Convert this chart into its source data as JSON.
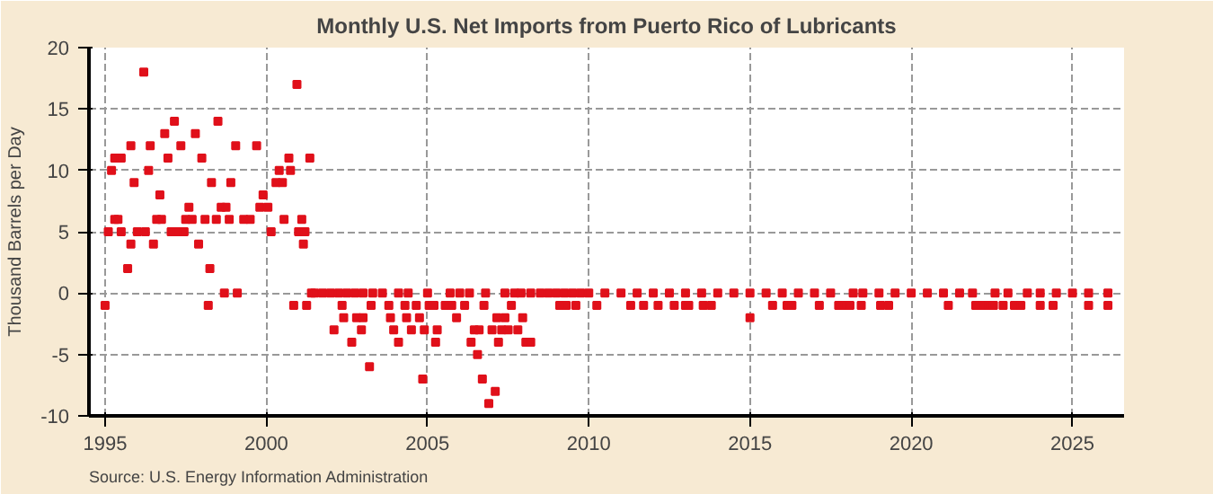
{
  "chart_data": {
    "type": "scatter",
    "title": "Monthly U.S. Net Imports from Puerto Rico of Lubricants",
    "ylabel": "Thousand Barrels per Day",
    "annotations": [
      "Source: U.S. Energy Information Administration"
    ],
    "x": [
      1995.0,
      1995.1,
      1995.2,
      1995.3,
      1995.4,
      1995.3,
      1995.5,
      1995.5,
      1995.7,
      1995.8,
      1995.8,
      1995.9,
      1996.0,
      1996.2,
      1996.25,
      1996.35,
      1996.4,
      1996.5,
      1996.6,
      1996.7,
      1996.75,
      1996.85,
      1996.95,
      1997.05,
      1997.15,
      1997.25,
      1997.35,
      1997.45,
      1997.5,
      1997.6,
      1997.7,
      1997.8,
      1997.9,
      1998.0,
      1998.1,
      1998.2,
      1998.25,
      1998.3,
      1998.45,
      1998.5,
      1998.6,
      1998.75,
      1998.7,
      1998.85,
      1998.9,
      1999.05,
      1999.1,
      1999.3,
      1999.5,
      1999.7,
      1999.8,
      1999.9,
      2000.05,
      2000.15,
      2000.3,
      2000.4,
      2000.5,
      2000.55,
      2000.7,
      2000.75,
      2000.85,
      2000.95,
      2001.0,
      2001.1,
      2001.15,
      2001.2,
      2001.25,
      2001.35,
      2001.4,
      2002.35,
      2002.4,
      2002.1,
      2002.65,
      2002.8,
      2003.0,
      2002.95,
      2003.2,
      2003.25,
      2003.8,
      2003.85,
      2003.95,
      2004.1,
      2004.3,
      2004.35,
      2004.5,
      2004.65,
      2004.75,
      2004.9,
      2004.85,
      2005.05,
      2005.2,
      2005.25,
      2005.3,
      2005.55,
      2005.75,
      2005.9,
      2006.15,
      2006.35,
      2006.45,
      2006.6,
      2006.55,
      2006.7,
      2006.75,
      2006.9,
      2007.1,
      2007.0,
      2007.2,
      2007.15,
      2007.3,
      2007.4,
      2007.5,
      2007.6,
      2007.8,
      2007.95,
      2008.05,
      2008.2,
      2009.1,
      2009.3,
      2009.6,
      2010.25,
      2011.3,
      2011.7,
      2012.15,
      2012.65,
      2013.0,
      2013.1,
      2013.55,
      2013.8,
      2015.0,
      2015.7,
      2016.15,
      2016.3,
      2017.15,
      2017.75,
      2017.95,
      2018.1,
      2018.45,
      2019.05,
      2019.3,
      2021.15,
      2022.0,
      2022.2,
      2022.4,
      2022.55,
      2022.85,
      2023.2,
      2023.4,
      2024.0,
      2024.4,
      2025.5,
      2026.1,
      2001.5,
      2001.75,
      2002.0,
      2002.25,
      2002.5,
      2002.75,
      2003.0,
      2003.3,
      2003.6,
      2004.1,
      2004.4,
      2005.0,
      2005.7,
      2006.0,
      2006.3,
      2006.8,
      2007.4,
      2007.7,
      2007.9,
      2008.2,
      2008.5,
      2008.75,
      2009.0,
      2009.25,
      2009.5,
      2009.75,
      2010.0,
      2010.5,
      2011.0,
      2011.5,
      2012.0,
      2012.5,
      2013.0,
      2013.5,
      2014.0,
      2014.5,
      2015.0,
      2015.5,
      2016.0,
      2016.5,
      2017.0,
      2017.5,
      2018.2,
      2018.5,
      2019.0,
      2019.5,
      2020.0,
      2020.5,
      2021.0,
      2021.5,
      2021.9,
      2022.6,
      2023.0,
      2023.6,
      2024.0,
      2024.5,
      2025.0,
      2025.5,
      2026.1
    ],
    "values": [
      -1,
      5,
      10,
      6,
      6,
      11,
      11,
      5,
      2,
      4,
      12,
      9,
      5,
      18,
      5,
      10,
      12,
      4,
      6,
      8,
      6,
      13,
      11,
      5,
      14,
      5,
      12,
      5,
      6,
      7,
      6,
      13,
      4,
      11,
      6,
      -1,
      2,
      9,
      6,
      14,
      7,
      7,
      0,
      6,
      9,
      12,
      0,
      6,
      6,
      12,
      7,
      8,
      7,
      5,
      9,
      10,
      9,
      6,
      11,
      10,
      -1,
      17,
      5,
      6,
      4,
      5,
      -1,
      11,
      0,
      -1,
      -2,
      -3,
      -4,
      -2,
      -2,
      -3,
      -6,
      -1,
      -1,
      -2,
      -3,
      -4,
      -1,
      -2,
      -3,
      -1,
      -2,
      -3,
      -7,
      -1,
      -1,
      -4,
      -3,
      -1,
      -1,
      -2,
      -1,
      -4,
      -3,
      -3,
      -5,
      -7,
      -1,
      -9,
      -8,
      -3,
      -4,
      -2,
      -3,
      -2,
      -3,
      -1,
      -3,
      -2,
      -4,
      -4,
      -1,
      -1,
      -1,
      -1,
      -1,
      -1,
      -1,
      -1,
      -1,
      -1,
      -1,
      -1,
      -2,
      -1,
      -1,
      -1,
      -1,
      -1,
      -1,
      -1,
      -1,
      -1,
      -1,
      -1,
      -1,
      -1,
      -1,
      -1,
      -1,
      -1,
      -1,
      -1,
      -1,
      -1,
      -1,
      0,
      0,
      0,
      0,
      0,
      0,
      0,
      0,
      0,
      0,
      0,
      0,
      0,
      0,
      0,
      0,
      0,
      0,
      0,
      0,
      0,
      0,
      0,
      0,
      0,
      0,
      0,
      0,
      0,
      0,
      0,
      0,
      0,
      0,
      0,
      0,
      0,
      0,
      0,
      0,
      0,
      0,
      0,
      0,
      0,
      0,
      0,
      0,
      0,
      0,
      0,
      0,
      0,
      0,
      0,
      0,
      0,
      0,
      0
    ],
    "color": "#e0101a",
    "marker": "square",
    "xlim": [
      1994.5,
      2026.6
    ],
    "xticks": [
      1995,
      2000,
      2005,
      2010,
      2015,
      2020,
      2025
    ],
    "ylim": [
      -10,
      20
    ],
    "yticks": [
      -10,
      -5,
      0,
      5,
      10,
      15,
      20
    ],
    "grid": true
  }
}
